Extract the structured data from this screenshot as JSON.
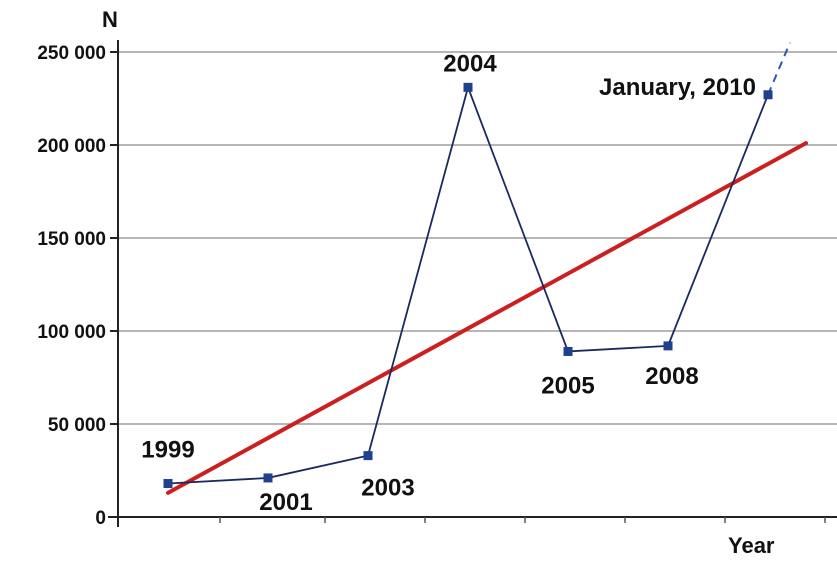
{
  "chart_data": {
    "type": "line",
    "ylabel": "N",
    "xlabel": "Year",
    "ylim": [
      0,
      250000
    ],
    "yticks": [
      {
        "value": 0,
        "label": "0"
      },
      {
        "value": 50000,
        "label": "50 000"
      },
      {
        "value": 100000,
        "label": "100 000"
      },
      {
        "value": 150000,
        "label": "150 000"
      },
      {
        "value": 200000,
        "label": "200 000"
      },
      {
        "value": 250000,
        "label": "250 000"
      }
    ],
    "grid": true,
    "series": [
      {
        "color": "#1a2a5c",
        "points": [
          {
            "label": "1999",
            "value": 18000
          },
          {
            "label": "2001",
            "value": 21000
          },
          {
            "label": "2003",
            "value": 33000
          },
          {
            "label": "2004",
            "value": 231000
          },
          {
            "label": "2005",
            "value": 89000
          },
          {
            "label": "2008",
            "value": 92000
          },
          {
            "label": "January, 2010",
            "value": 227000
          }
        ],
        "extrapolated_end_value": 255000
      }
    ],
    "trendline": {
      "color": "#cc1f1f",
      "start_value": 13000,
      "end_value": 201000
    }
  }
}
